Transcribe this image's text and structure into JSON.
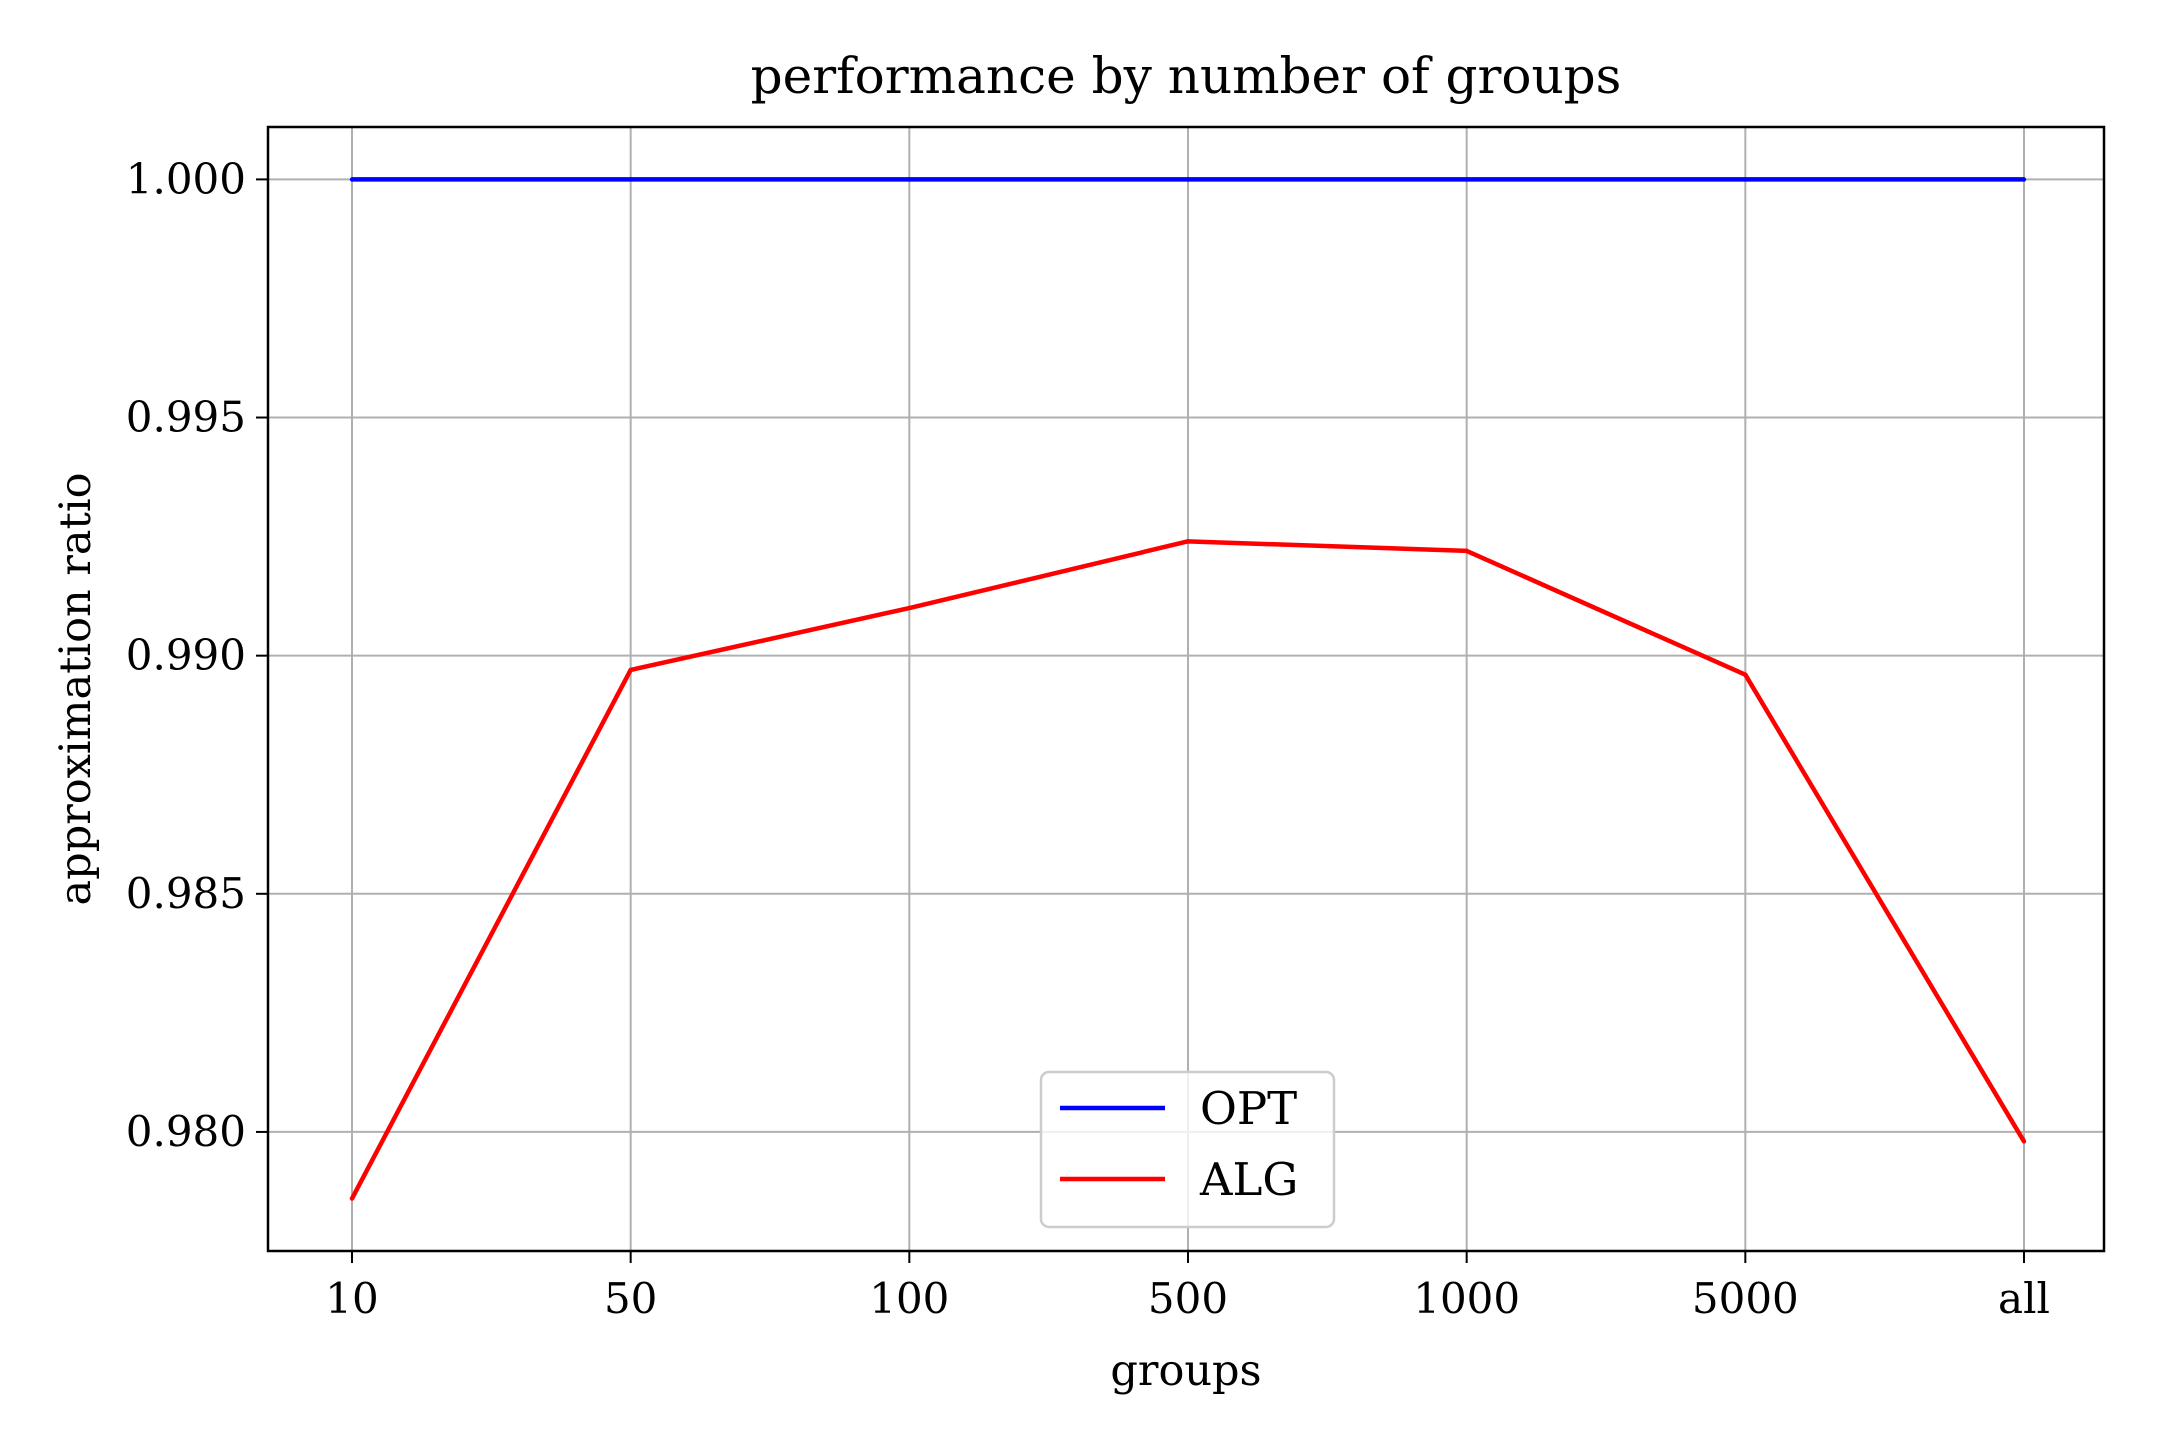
{
  "chart_data": {
    "type": "line",
    "title": "performance by number of groups",
    "xlabel": "groups",
    "ylabel": "approximation ratio",
    "categories": [
      "10",
      "50",
      "100",
      "500",
      "1000",
      "5000",
      "all"
    ],
    "ylim": [
      0.9775,
      1.0011
    ],
    "yticks": [
      0.98,
      0.985,
      0.99,
      0.995,
      1.0
    ],
    "ytick_labels": [
      "0.980",
      "0.985",
      "0.990",
      "0.995",
      "1.000"
    ],
    "grid": true,
    "legend_position": "lower center",
    "series": [
      {
        "name": "OPT",
        "color": "#0000ff",
        "values": [
          1.0,
          1.0,
          1.0,
          1.0,
          1.0,
          1.0,
          1.0
        ]
      },
      {
        "name": "ALG",
        "color": "#ff0000",
        "values": [
          0.9786,
          0.9897,
          0.991,
          0.9924,
          0.9922,
          0.9896,
          0.9798
        ]
      }
    ]
  }
}
